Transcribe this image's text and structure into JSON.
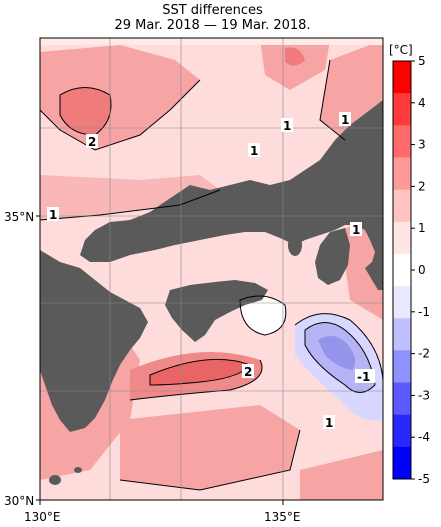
{
  "title": "SST differences",
  "subtitle": "29 Mar. 2018 — 19 Mar. 2018.",
  "colorbar": {
    "unit": "[°C]",
    "ticks": [
      "5",
      "4",
      "3",
      "2",
      "1",
      "0",
      "-1",
      "-2",
      "-3",
      "-4",
      "-5"
    ],
    "colors": [
      "#ff0000",
      "#ff3a3a",
      "#ff6a6a",
      "#ff9a9a",
      "#ffc3c3",
      "#ffe6e6",
      "#ffffff",
      "#e9e9ff",
      "#c0c0ff",
      "#9090ff",
      "#5a5aff",
      "#2828ff",
      "#0000ff"
    ]
  },
  "axes": {
    "lat_labels": [
      "35°N",
      "30°N"
    ],
    "lon_labels": [
      "130°E",
      "135°E"
    ]
  },
  "contour_labels": [
    "2",
    "1",
    "1",
    "1",
    "1",
    "1",
    "2",
    "-1",
    "1"
  ],
  "colors": {
    "land": "#5a5a5a",
    "sea_base": "#ffdcdc",
    "warm": "#f6a0a0",
    "warmer": "#ef7b7b",
    "cool": "#a8a8f0"
  }
}
